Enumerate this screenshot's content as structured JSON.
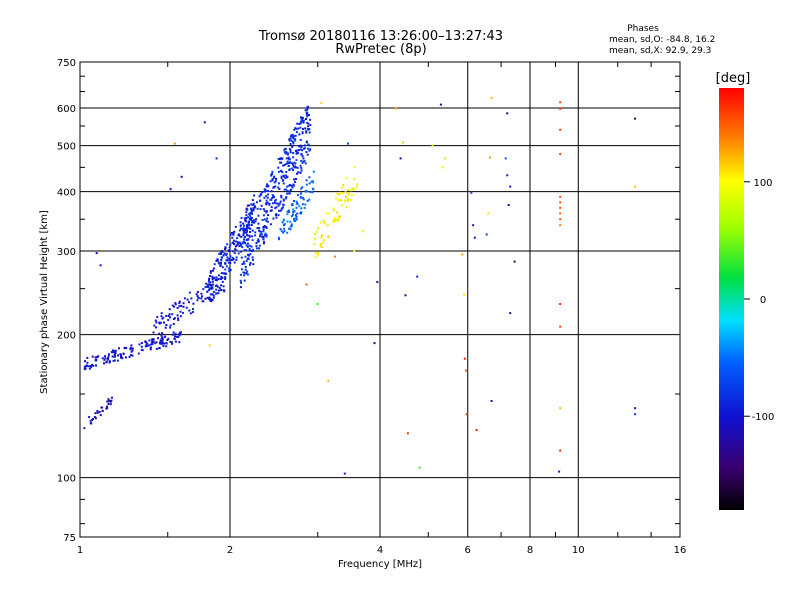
{
  "chart_data": {
    "type": "scatter",
    "title": "Tromsø 20180116 13:26:00–13:27:43",
    "subtitle": "RwPretec (8p)",
    "xlabel": "Frequency [MHz]",
    "ylabel": "Stationary phase Virtual Height [km]",
    "x_scale": "log",
    "y_scale": "log",
    "xlim": [
      1,
      16
    ],
    "ylim": [
      75,
      750
    ],
    "x_ticks": [
      1,
      2,
      4,
      6,
      8,
      10,
      16
    ],
    "y_ticks": [
      75,
      100,
      200,
      300,
      400,
      500,
      600,
      750
    ],
    "x_ticks_labels": [
      "1",
      "2",
      "4",
      "6",
      "8",
      "10",
      "16"
    ],
    "y_ticks_labels": [
      "75",
      "100",
      "200",
      "300",
      "400",
      "500",
      "600",
      "750"
    ],
    "grid": true,
    "stats": {
      "header": "Phases",
      "line1": "mean, sd,O: -84.8, 16.2",
      "line2": "mean, sd,X:  92.9, 29.3"
    },
    "colorbar": {
      "label": "[deg]",
      "range": [
        -180,
        180
      ],
      "ticks": [
        100,
        0,
        -100
      ],
      "tick_labels": [
        "100",
        "0",
        "-100"
      ]
    },
    "traces": [
      {
        "fmin": 1.02,
        "fmax": 1.16,
        "hmin": 125,
        "hmax": 150,
        "phase": -108,
        "n": 30
      },
      {
        "fmin": 1.02,
        "fmax": 1.6,
        "hmin": 168,
        "hmax": 205,
        "phase": -100,
        "n": 150
      },
      {
        "fmin": 1.4,
        "fmax": 2.0,
        "hmin": 195,
        "hmax": 280,
        "phase": -98,
        "n": 110
      },
      {
        "fmin": 1.8,
        "fmax": 2.25,
        "hmin": 225,
        "hmax": 400,
        "phase": -92,
        "n": 200
      },
      {
        "fmin": 2.1,
        "fmax": 2.9,
        "hmin": 250,
        "hmax": 630,
        "phase": -85,
        "n": 420
      },
      {
        "fmin": 2.5,
        "fmax": 2.95,
        "hmin": 300,
        "hmax": 450,
        "phase": -55,
        "n": 80
      },
      {
        "fmin": 2.95,
        "fmax": 3.6,
        "hmin": 280,
        "hmax": 470,
        "phase": 100,
        "n": 70
      }
    ],
    "scatter_points": [
      {
        "x": 1.08,
        "y": 297,
        "phase": -100
      },
      {
        "x": 1.1,
        "y": 280,
        "phase": -95
      },
      {
        "x": 1.52,
        "y": 405,
        "phase": -110
      },
      {
        "x": 1.6,
        "y": 430,
        "phase": -105
      },
      {
        "x": 1.78,
        "y": 560,
        "phase": -120
      },
      {
        "x": 1.88,
        "y": 470,
        "phase": -90
      },
      {
        "x": 1.55,
        "y": 505,
        "phase": 130
      },
      {
        "x": 1.82,
        "y": 190,
        "phase": 110
      },
      {
        "x": 3.05,
        "y": 615,
        "phase": 110
      },
      {
        "x": 3.15,
        "y": 160,
        "phase": 120
      },
      {
        "x": 3.45,
        "y": 505,
        "phase": -70
      },
      {
        "x": 3.9,
        "y": 192,
        "phase": -130
      },
      {
        "x": 3.95,
        "y": 258,
        "phase": -120
      },
      {
        "x": 3.4,
        "y": 102,
        "phase": -95
      },
      {
        "x": 4.3,
        "y": 598,
        "phase": 120
      },
      {
        "x": 4.45,
        "y": 508,
        "phase": 60
      },
      {
        "x": 4.4,
        "y": 470,
        "phase": -115
      },
      {
        "x": 4.5,
        "y": 242,
        "phase": -140
      },
      {
        "x": 4.75,
        "y": 265,
        "phase": -90
      },
      {
        "x": 4.55,
        "y": 124,
        "phase": 160
      },
      {
        "x": 4.8,
        "y": 105,
        "phase": 30
      },
      {
        "x": 5.3,
        "y": 610,
        "phase": -140
      },
      {
        "x": 5.1,
        "y": 500,
        "phase": 80
      },
      {
        "x": 5.4,
        "y": 470,
        "phase": 70
      },
      {
        "x": 5.35,
        "y": 450,
        "phase": 90
      },
      {
        "x": 5.85,
        "y": 295,
        "phase": 130
      },
      {
        "x": 5.9,
        "y": 243,
        "phase": 110
      },
      {
        "x": 5.92,
        "y": 178,
        "phase": 170
      },
      {
        "x": 5.95,
        "y": 168,
        "phase": 150
      },
      {
        "x": 5.97,
        "y": 136,
        "phase": 160
      },
      {
        "x": 6.1,
        "y": 398,
        "phase": -80
      },
      {
        "x": 6.15,
        "y": 340,
        "phase": -100
      },
      {
        "x": 6.2,
        "y": 320,
        "phase": -110
      },
      {
        "x": 6.25,
        "y": 126,
        "phase": 170
      },
      {
        "x": 6.7,
        "y": 630,
        "phase": 120
      },
      {
        "x": 6.65,
        "y": 472,
        "phase": 130
      },
      {
        "x": 6.6,
        "y": 360,
        "phase": 110
      },
      {
        "x": 6.55,
        "y": 325,
        "phase": -70
      },
      {
        "x": 6.7,
        "y": 145,
        "phase": -115
      },
      {
        "x": 7.2,
        "y": 585,
        "phase": -120
      },
      {
        "x": 7.15,
        "y": 470,
        "phase": -60
      },
      {
        "x": 7.2,
        "y": 433,
        "phase": -90
      },
      {
        "x": 7.3,
        "y": 410,
        "phase": -95
      },
      {
        "x": 7.25,
        "y": 375,
        "phase": -130
      },
      {
        "x": 7.45,
        "y": 285,
        "phase": -150
      },
      {
        "x": 7.3,
        "y": 222,
        "phase": -140
      },
      {
        "x": 9.2,
        "y": 617,
        "phase": 160
      },
      {
        "x": 9.2,
        "y": 598,
        "phase": 170
      },
      {
        "x": 9.2,
        "y": 540,
        "phase": 165
      },
      {
        "x": 9.2,
        "y": 480,
        "phase": 160
      },
      {
        "x": 9.2,
        "y": 390,
        "phase": 150
      },
      {
        "x": 9.2,
        "y": 380,
        "phase": 155
      },
      {
        "x": 9.2,
        "y": 370,
        "phase": 150
      },
      {
        "x": 9.2,
        "y": 360,
        "phase": 145
      },
      {
        "x": 9.2,
        "y": 350,
        "phase": 150
      },
      {
        "x": 9.2,
        "y": 340,
        "phase": 140
      },
      {
        "x": 9.2,
        "y": 232,
        "phase": 170
      },
      {
        "x": 9.2,
        "y": 208,
        "phase": 160
      },
      {
        "x": 9.2,
        "y": 140,
        "phase": 120
      },
      {
        "x": 9.2,
        "y": 114,
        "phase": 170
      },
      {
        "x": 9.15,
        "y": 103,
        "phase": -90
      },
      {
        "x": 13.0,
        "y": 570,
        "phase": -150
      },
      {
        "x": 13.0,
        "y": 410,
        "phase": 120
      },
      {
        "x": 13.0,
        "y": 140,
        "phase": -120
      },
      {
        "x": 13.0,
        "y": 136,
        "phase": -80
      },
      {
        "x": 3.0,
        "y": 232,
        "phase": 40
      },
      {
        "x": 3.25,
        "y": 292,
        "phase": 140
      },
      {
        "x": 3.55,
        "y": 300,
        "phase": 100
      },
      {
        "x": 3.7,
        "y": 330,
        "phase": 80
      },
      {
        "x": 3.6,
        "y": 410,
        "phase": 90
      },
      {
        "x": 2.85,
        "y": 255,
        "phase": 150
      }
    ]
  }
}
